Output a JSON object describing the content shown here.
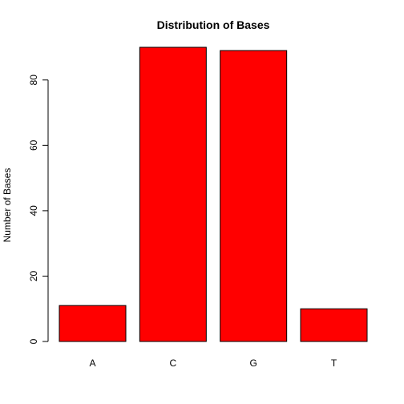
{
  "chart_data": {
    "type": "bar",
    "title": "Distribution of Bases",
    "xlabel": "",
    "ylabel": "Number of Bases",
    "categories": [
      "A",
      "C",
      "G",
      "T"
    ],
    "values": [
      11,
      90,
      89,
      10
    ],
    "ylim": [
      0,
      90
    ],
    "yticks": [
      0,
      20,
      40,
      60,
      80
    ],
    "bar_color": "#ff0000",
    "bar_border_color": "#000000",
    "grid": false,
    "legend": "none"
  }
}
